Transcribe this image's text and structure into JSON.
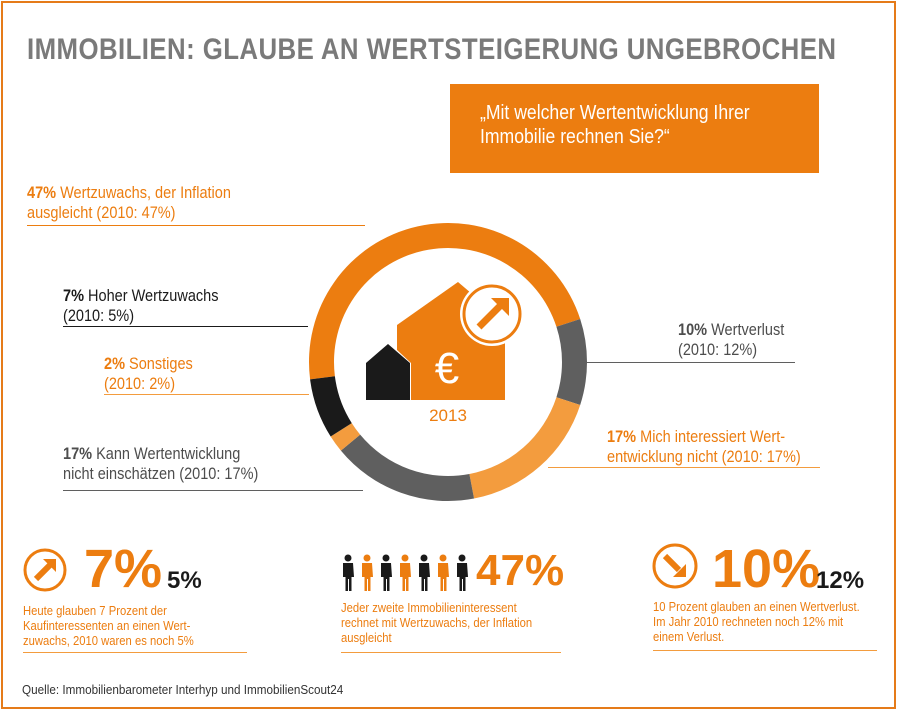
{
  "title": "IMMOBILIEN: GLAUBE AN WERTSTEIGERUNG UNGEBROCHEN",
  "question": [
    "„Mit welcher Wertentwicklung Ihrer",
    "Immobilie rechnen Sie?“"
  ],
  "year": "2013",
  "euro_symbol": "€",
  "labels": {
    "wertzuwachs_inflation": {
      "pct": "47%",
      "line1": " Wertzuwachs, der Inflation",
      "line2": "ausgleicht (2010: 47%)"
    },
    "hoher": {
      "pct": "7%",
      "line1": " Hoher Wertzuwachs",
      "line2": "(2010: 5%)"
    },
    "sonstiges": {
      "pct": "2%",
      "line1": " Sonstiges",
      "line2": "(2010: 2%)"
    },
    "nicht_einschaetzen": {
      "pct": "17%",
      "line1": " Kann Wertentwicklung",
      "line2": "nicht einschätzen (2010: 17%)"
    },
    "wertverlust": {
      "pct": "10%",
      "line1": " Wertverlust",
      "line2": "(2010: 12%)"
    },
    "nicht_interessiert": {
      "pct": "17%",
      "line1": " Mich interessiert Wert-",
      "line2": "entwicklung nicht (2010: 17%)"
    }
  },
  "stats": {
    "left": {
      "big": "7%",
      "small": "5%",
      "desc": [
        "Heute glauben 7 Prozent der",
        "Kaufinteressenten an einen Wert-",
        "zuwachs, 2010 waren es noch 5%"
      ],
      "icon": "arrow-up-right-icon"
    },
    "middle": {
      "big": "47%",
      "desc": [
        "Jeder zweite Immobilieninteressent",
        "rechnet mit Wertzuwachs, der Inflation",
        "ausgleicht"
      ],
      "icon": "people-icon"
    },
    "right": {
      "big": "10%",
      "small": "12%",
      "desc": [
        "10 Prozent glauben an einen Wertverlust.",
        "Im Jahr 2010 rechneten noch 12% mit",
        "einem Verlust."
      ],
      "icon": "arrow-down-right-icon"
    }
  },
  "source": "Quelle: Immobilienbarometer Interhyp und ImmobilienScout24",
  "colors": {
    "orange": "#ec7d10",
    "light_orange": "#f39c3e",
    "black": "#1a1a1a",
    "dark_grey": "#5f5f5f",
    "grey": "#4d4d4d"
  },
  "chart_data": {
    "type": "pie",
    "subtype": "donut",
    "title": "„Mit welcher Wertentwicklung Ihrer Immobilie rechnen Sie?“",
    "year": "2013",
    "slices": [
      {
        "label": "Wertzuwachs, der Inflation ausgleicht",
        "value": 47,
        "value_2010": 47,
        "color": "#ec7d10"
      },
      {
        "label": "Wertverlust",
        "value": 10,
        "value_2010": 12,
        "color": "#5f5f5f"
      },
      {
        "label": "Mich interessiert Wertentwicklung nicht",
        "value": 17,
        "value_2010": 17,
        "color": "#f39c3e"
      },
      {
        "label": "Kann Wertentwicklung nicht einschätzen",
        "value": 17,
        "value_2010": 17,
        "color": "#5f5f5f"
      },
      {
        "label": "Sonstiges",
        "value": 2,
        "value_2010": 2,
        "color": "#f39c3e"
      },
      {
        "label": "Hoher Wertzuwachs",
        "value": 7,
        "value_2010": 5,
        "color": "#1a1a1a"
      }
    ]
  }
}
